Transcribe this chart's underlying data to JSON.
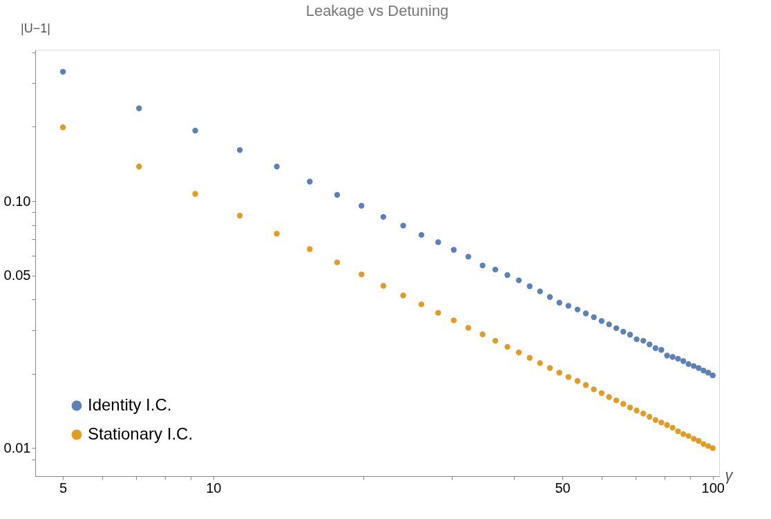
{
  "chart_data": {
    "type": "scatter",
    "title": "Leakage vs Detuning",
    "xlabel": "γ",
    "ylabel": "|U−1|",
    "x": [
      5,
      7.1,
      9.2,
      11.3,
      13.4,
      15.6,
      17.7,
      19.8,
      21.9,
      24,
      26.1,
      28.2,
      30.3,
      32.4,
      34.6,
      36.7,
      38.8,
      40.9,
      43,
      45.1,
      47.2,
      49.3,
      51.4,
      53.6,
      55.7,
      57.8,
      59.9,
      62,
      64.1,
      66.2,
      68.3,
      70.4,
      72.6,
      74.7,
      76.8,
      78.9,
      81,
      83.1,
      85.2,
      87.3,
      89.4,
      91.6,
      93.7,
      95.8,
      97.9,
      100
    ],
    "series": [
      {
        "name": "Identity I.C.",
        "color": "#5e81b5",
        "values": [
          0.334,
          0.2375,
          0.193,
          0.161,
          0.138,
          0.12,
          0.106,
          0.0958,
          0.0863,
          0.0796,
          0.073,
          0.0682,
          0.0635,
          0.0596,
          0.0549,
          0.0528,
          0.0502,
          0.0478,
          0.0452,
          0.0431,
          0.0409,
          0.0388,
          0.0377,
          0.0364,
          0.0351,
          0.0339,
          0.0327,
          0.0317,
          0.0306,
          0.0296,
          0.0288,
          0.0276,
          0.0272,
          0.0263,
          0.0254,
          0.025,
          0.0237,
          0.0234,
          0.023,
          0.0225,
          0.0219,
          0.0215,
          0.0211,
          0.0206,
          0.0202,
          0.0197
        ]
      },
      {
        "name": "Stationary I.C.",
        "color": "#e19c24",
        "values": [
          0.199,
          0.138,
          0.107,
          0.0874,
          0.0738,
          0.0639,
          0.0565,
          0.0505,
          0.0454,
          0.0415,
          0.0382,
          0.0353,
          0.0329,
          0.0307,
          0.0289,
          0.0272,
          0.0257,
          0.0244,
          0.0232,
          0.0221,
          0.0211,
          0.0202,
          0.0194,
          0.0187,
          0.018,
          0.0173,
          0.0167,
          0.0161,
          0.0156,
          0.0151,
          0.0146,
          0.0142,
          0.0138,
          0.0134,
          0.013,
          0.0127,
          0.0124,
          0.0121,
          0.0117,
          0.0114,
          0.0112,
          0.0109,
          0.0107,
          0.0104,
          0.0102,
          0.01
        ]
      }
    ],
    "log": "xy",
    "xlim": [
      4.4,
      103
    ],
    "ylim": [
      0.0077,
      0.41
    ],
    "xticks": [
      5,
      {
        "value": 6,
        "label": null
      },
      {
        "value": 7,
        "label": null
      },
      {
        "value": 8,
        "label": null
      },
      {
        "value": 9,
        "label": null
      },
      10,
      {
        "value": 20,
        "label": null
      },
      {
        "value": 30,
        "label": null
      },
      {
        "value": 40,
        "label": null
      },
      50,
      {
        "value": 60,
        "label": null
      },
      {
        "value": 70,
        "label": null
      },
      {
        "value": 80,
        "label": null
      },
      {
        "value": 90,
        "label": null
      },
      100
    ],
    "yticks": [
      {
        "value": 0.009,
        "label": null
      },
      0.01,
      {
        "value": 0.02,
        "label": null
      },
      {
        "value": 0.03,
        "label": null
      },
      {
        "value": 0.04,
        "label": null
      },
      0.05,
      {
        "value": 0.06,
        "label": null
      },
      {
        "value": 0.07,
        "label": null
      },
      {
        "value": 0.08,
        "label": null
      },
      {
        "value": 0.09,
        "label": null
      },
      {
        "value": 0.1,
        "label": "0.10"
      },
      {
        "value": 0.2,
        "label": null
      },
      {
        "value": 0.3,
        "label": null
      },
      {
        "value": 0.4,
        "label": null
      }
    ],
    "grid": false,
    "legend": "bottom left",
    "marker": "circle"
  }
}
